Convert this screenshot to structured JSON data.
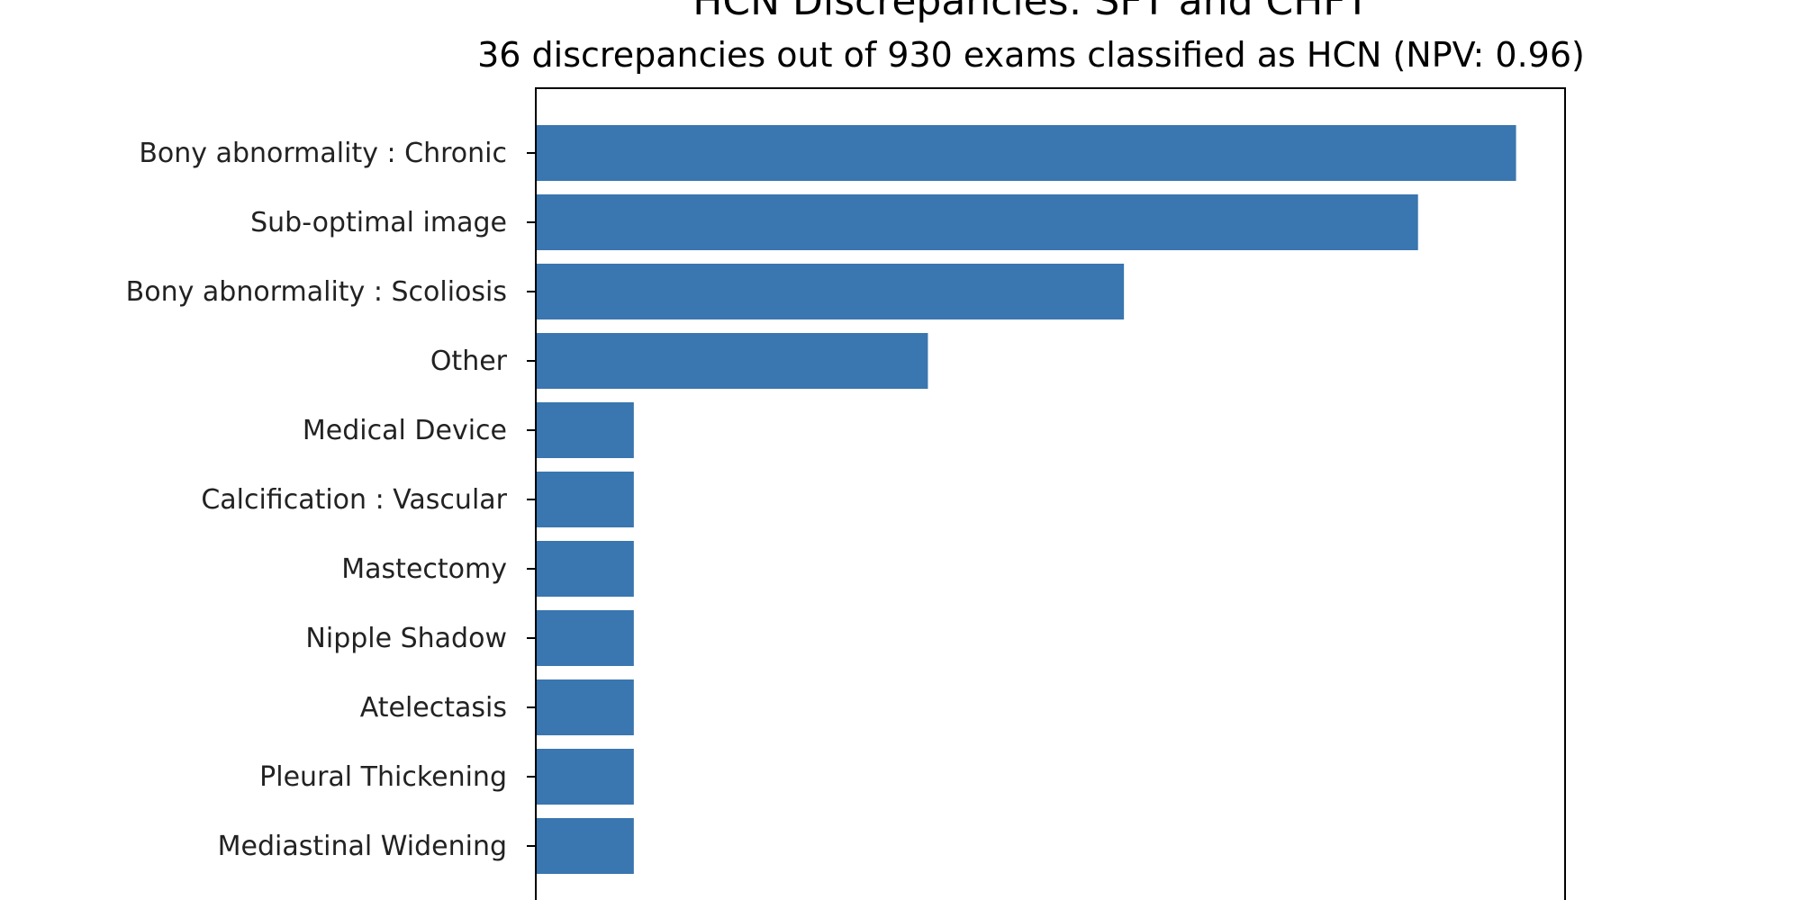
{
  "chart_data": {
    "type": "bar",
    "orientation": "horizontal",
    "title": "HCN Discrepancies: SFT and CHFT",
    "subtitle": "36 discrepancies out of 930 exams classified as HCN (NPV: 0.96)",
    "xlabel": "",
    "ylabel": "",
    "categories": [
      "Bony abnormality : Chronic",
      "Sub-optimal image",
      "Bony abnormality : Scoliosis",
      "Other",
      "Medical Device",
      "Calcification : Vascular",
      "Mastectomy",
      "Nipple Shadow",
      "Atelectasis",
      "Pleural Thickening",
      "Mediastinal Widening"
    ],
    "values": [
      10,
      9,
      6,
      4,
      1,
      1,
      1,
      1,
      1,
      1,
      1
    ],
    "xlim": [
      0,
      10.5
    ],
    "grid": false,
    "legend": "none",
    "colors": {
      "bar": "#3a76af",
      "axis": "#000000",
      "text": "#222222"
    }
  }
}
